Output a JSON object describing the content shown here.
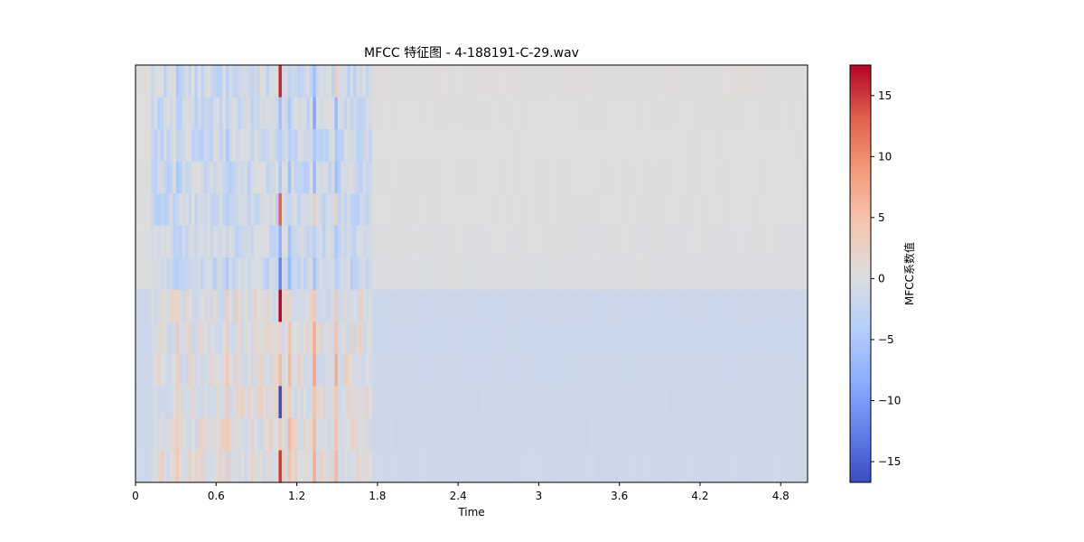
{
  "chart_data": {
    "type": "heatmap",
    "title": "MFCC 特征图 - 4-188191-C-29.wav",
    "xlabel": "Time",
    "ylabel": "",
    "xlim": [
      0,
      5.0
    ],
    "x_ticks": [
      0,
      0.6,
      1.2,
      1.8,
      2.4,
      3.0,
      3.6,
      4.2,
      4.8
    ],
    "x_tick_labels": [
      "0",
      "0.6",
      "1.2",
      "1.8",
      "2.4",
      "3",
      "3.6",
      "4.2",
      "4.8"
    ],
    "colormap": "coolwarm",
    "colorbar": {
      "label": "MFCC系数值",
      "range": [
        -16.7,
        17.5
      ],
      "ticks": [
        -15,
        -10,
        -5,
        0,
        5,
        10,
        15
      ],
      "tick_labels": [
        "−15",
        "−10",
        "−5",
        "0",
        "5",
        "10",
        "15"
      ]
    },
    "rows": 13,
    "quiet_rows": [
      0.6,
      0.5,
      0.4,
      0.3,
      0.3,
      0.2,
      0.1,
      -1.6,
      -1.7,
      -1.6,
      -1.5,
      -1.5,
      -1.4
    ],
    "active_range": [
      0.1,
      1.75
    ],
    "spikes": [
      {
        "time": 1.06,
        "values": [
          16.0,
          -6.0,
          -4.0,
          -5.0,
          13.0,
          -8.0,
          -12.0,
          17.5,
          2.0,
          6.0,
          -16.7,
          4.0,
          15.0
        ]
      },
      {
        "time": 1.32,
        "values": [
          -6.0,
          -9.0,
          -5.0,
          -7.0,
          3.0,
          -4.0,
          -6.0,
          4.0,
          7.0,
          8.0,
          5.0,
          6.0,
          7.0
        ]
      },
      {
        "time": 1.49,
        "values": [
          3.0,
          -7.0,
          -5.0,
          -6.0,
          2.0,
          -5.0,
          -4.0,
          3.0,
          5.0,
          7.0,
          4.0,
          5.0,
          6.0
        ]
      },
      {
        "time": 0.29,
        "values": [
          -5.0,
          -4.0,
          -3.0,
          -5.0,
          -2.0,
          -3.0,
          -4.0,
          2.0,
          4.0,
          3.0,
          2.0,
          3.0,
          4.0
        ]
      },
      {
        "time": 0.68,
        "values": [
          -4.0,
          -3.0,
          -5.0,
          -3.0,
          -4.0,
          -2.0,
          -5.0,
          3.0,
          3.0,
          4.0,
          3.0,
          4.0,
          3.0
        ]
      },
      {
        "time": 1.14,
        "values": [
          -3.0,
          -5.0,
          -4.0,
          -6.0,
          -2.0,
          -6.0,
          -7.0,
          2.0,
          5.0,
          6.0,
          3.0,
          6.0,
          5.0
        ]
      }
    ]
  }
}
